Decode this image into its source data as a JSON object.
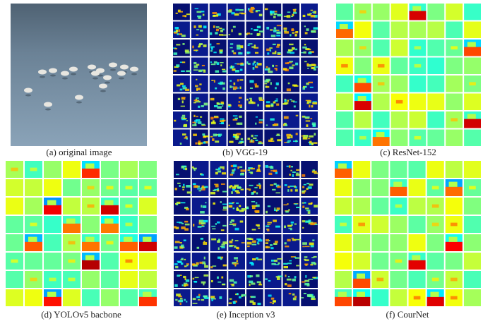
{
  "panels": [
    {
      "caption": "(a)  original image"
    },
    {
      "caption": "(b)  VGG-19"
    },
    {
      "caption": "(c)  ResNet-152"
    },
    {
      "caption": "(d)  YOLOv5 bacbone"
    },
    {
      "caption": "(e)  Inception v3"
    },
    {
      "caption": "(f)  CourNet"
    }
  ]
}
